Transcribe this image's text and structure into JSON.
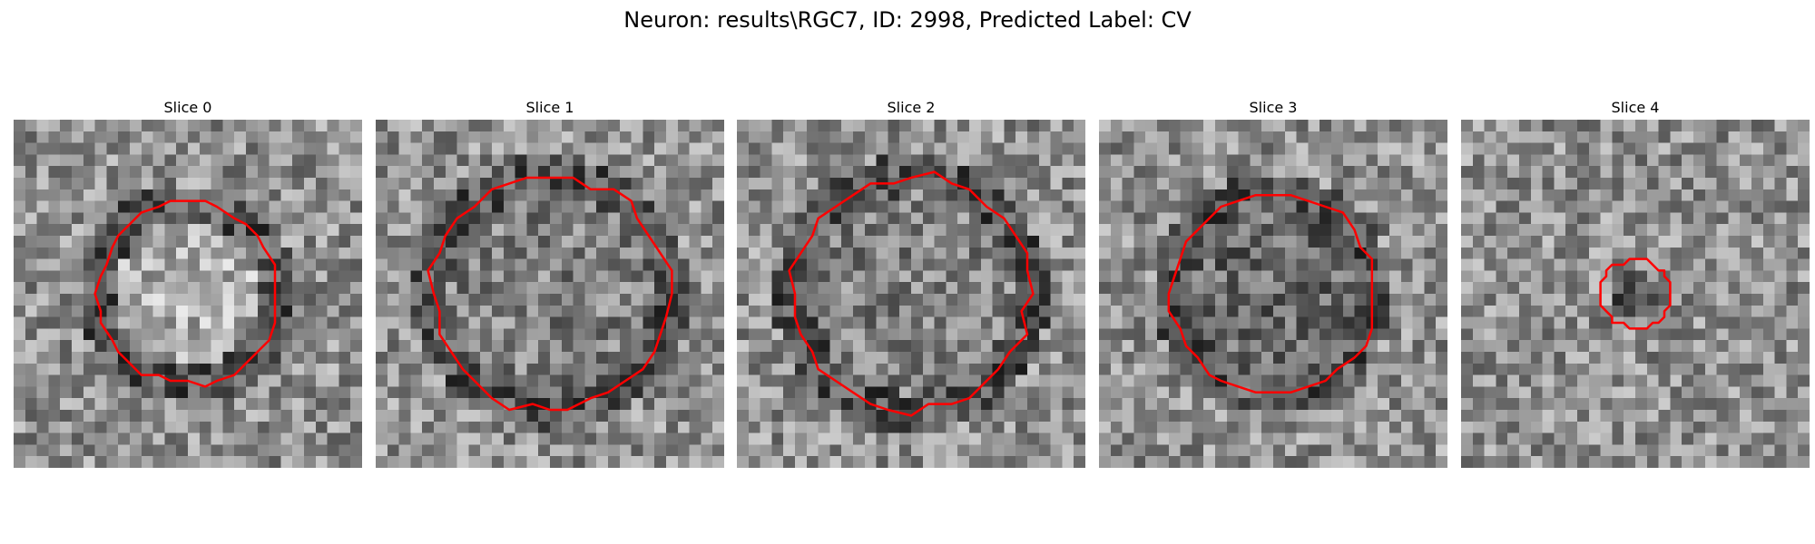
{
  "figure": {
    "title": "Neuron: results\\RGC7, ID: 2998, Predicted Label: CV",
    "contour_color": "#ff0000"
  },
  "slices": [
    {
      "label": "Slice 0",
      "center": [
        0.5,
        0.5
      ],
      "radius": 0.26,
      "center_tone": "light",
      "ring_tone": "dark",
      "seed": 11
    },
    {
      "label": "Slice 1",
      "center": [
        0.5,
        0.5
      ],
      "radius": 0.34,
      "center_tone": "mid",
      "ring_tone": "dark",
      "seed": 23
    },
    {
      "label": "Slice 2",
      "center": [
        0.5,
        0.5
      ],
      "radius": 0.34,
      "center_tone": "mid",
      "ring_tone": "dark",
      "seed": 37
    },
    {
      "label": "Slice 3",
      "center": [
        0.5,
        0.5
      ],
      "radius": 0.29,
      "center_tone": "mid-dark",
      "ring_tone": "dark",
      "seed": 41
    },
    {
      "label": "Slice 4",
      "center": [
        0.5,
        0.5
      ],
      "radius": 0.1,
      "center_tone": "dark",
      "ring_tone": "none",
      "seed": 53
    }
  ]
}
